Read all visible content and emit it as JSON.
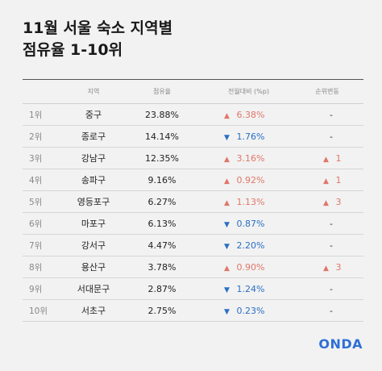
{
  "title_line1": "11월 서울 숙소 지역별",
  "title_line2": "점유율 1-10위",
  "logo": "ONDA",
  "chart_data": {
    "type": "table",
    "title": "11월 서울 숙소 지역별 점유율 1-10위",
    "columns": [
      "",
      "지역",
      "점유율",
      "전월대비 (%p)",
      "순위변동"
    ],
    "rows": [
      {
        "rank": "1위",
        "region": "중구",
        "share": "23.88%",
        "change_dir": "up",
        "change": "6.38%",
        "rank_dir": "",
        "rank_change": "-"
      },
      {
        "rank": "2위",
        "region": "종로구",
        "share": "14.14%",
        "change_dir": "down",
        "change": "1.76%",
        "rank_dir": "",
        "rank_change": "-"
      },
      {
        "rank": "3위",
        "region": "강남구",
        "share": "12.35%",
        "change_dir": "up",
        "change": "3.16%",
        "rank_dir": "up",
        "rank_change": "1"
      },
      {
        "rank": "4위",
        "region": "송파구",
        "share": "9.16%",
        "change_dir": "up",
        "change": "0.92%",
        "rank_dir": "up",
        "rank_change": "1"
      },
      {
        "rank": "5위",
        "region": "영등포구",
        "share": "6.27%",
        "change_dir": "up",
        "change": "1.13%",
        "rank_dir": "up",
        "rank_change": "3"
      },
      {
        "rank": "6위",
        "region": "마포구",
        "share": "6.13%",
        "change_dir": "down",
        "change": "0.87%",
        "rank_dir": "",
        "rank_change": "-"
      },
      {
        "rank": "7위",
        "region": "강서구",
        "share": "4.47%",
        "change_dir": "down",
        "change": "2.20%",
        "rank_dir": "",
        "rank_change": "-"
      },
      {
        "rank": "8위",
        "region": "용산구",
        "share": "3.78%",
        "change_dir": "up",
        "change": "0.90%",
        "rank_dir": "up",
        "rank_change": "3"
      },
      {
        "rank": "9위",
        "region": "서대문구",
        "share": "2.87%",
        "change_dir": "down",
        "change": "1.24%",
        "rank_dir": "",
        "rank_change": "-"
      },
      {
        "rank": "10위",
        "region": "서초구",
        "share": "2.75%",
        "change_dir": "down",
        "change": "0.23%",
        "rank_dir": "",
        "rank_change": "-"
      }
    ]
  },
  "colors": {
    "up": "#e0766a",
    "down": "#2b6fc4",
    "logo": "#2f6fd6"
  }
}
